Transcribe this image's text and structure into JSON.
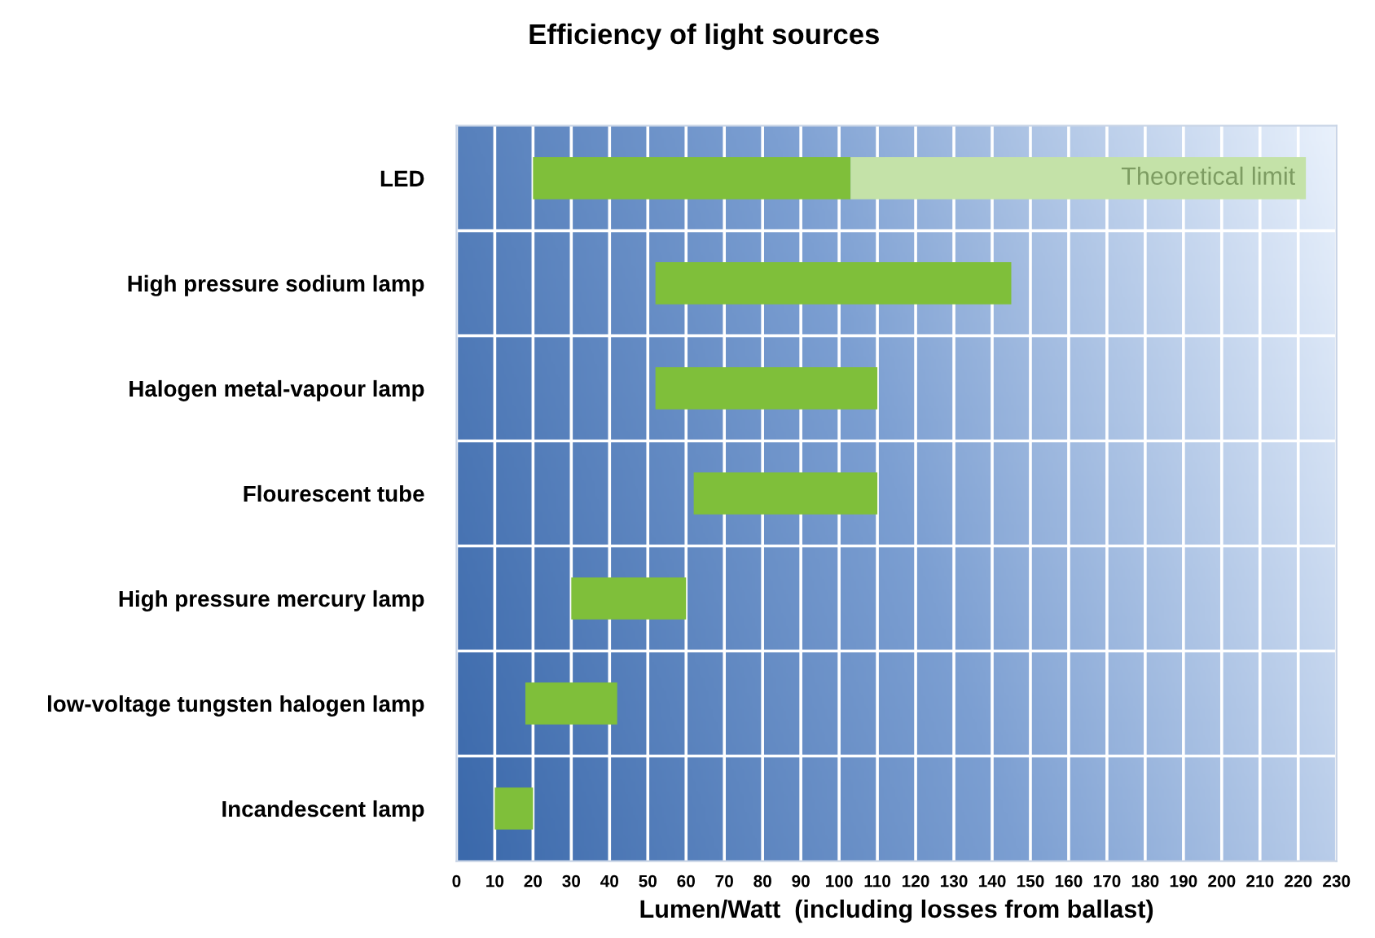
{
  "chart_data": {
    "type": "bar",
    "title": "Efficiency of light sources",
    "xlabel": "Lumen/Watt  (including losses from ballast)",
    "categories": [
      "LED",
      "High pressure sodium lamp",
      "Halogen metal-vapour lamp",
      "Flourescent tube",
      "High pressure mercury lamp",
      "low-voltage tungsten halogen lamp",
      "Incandescent lamp"
    ],
    "orientation": "horizontal",
    "series": [
      {
        "color": "#7fbf3a",
        "base": [
          20,
          52,
          52,
          62,
          30,
          18,
          10
        ],
        "values": [
          83,
          93,
          58,
          48,
          30,
          24,
          10
        ]
      },
      {
        "name": "Theoretical limit",
        "color": "#c4e2a8",
        "base": [
          103,
          null,
          null,
          null,
          null,
          null,
          null
        ],
        "values": [
          119,
          null,
          null,
          null,
          null,
          null,
          null
        ]
      }
    ],
    "xlim": [
      0,
      230
    ],
    "xticks": [
      0,
      10,
      20,
      30,
      40,
      50,
      60,
      70,
      80,
      90,
      100,
      110,
      120,
      130,
      140,
      150,
      160,
      170,
      180,
      190,
      200,
      210,
      220,
      230
    ],
    "grid": true
  }
}
